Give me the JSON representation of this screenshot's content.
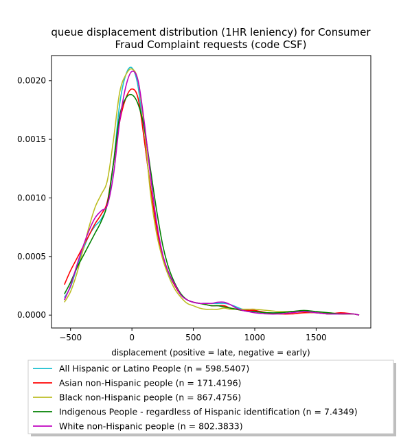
{
  "chart_data": {
    "type": "line",
    "title_lines": [
      "queue displacement distribution (1HR leniency) for Consumer",
      "Fraud Complaint  requests (code CSF)"
    ],
    "xlabel": "displacement (positive = late, negative = early)",
    "ylabel": "",
    "xlim": [
      -655,
      1945
    ],
    "ylim": [
      -0.00011,
      0.002215
    ],
    "x_ticks": [
      -500,
      0,
      500,
      1000,
      1500
    ],
    "x_tick_labels": [
      "−500",
      "0",
      "500",
      "1000",
      "1500"
    ],
    "y_ticks": [
      0.0,
      0.0005,
      0.001,
      0.0015,
      0.002
    ],
    "y_tick_labels": [
      "0.0000",
      "0.0005",
      "0.0010",
      "0.0015",
      "0.0020"
    ],
    "grid": false,
    "legend_position": "below",
    "series": [
      {
        "name": "All Hispanic or Latino People (n = 598.5407)",
        "color": "#17becf",
        "x": [
          -550,
          -500,
          -450,
          -400,
          -350,
          -300,
          -250,
          -200,
          -150,
          -100,
          -50,
          0,
          50,
          100,
          150,
          200,
          250,
          300,
          350,
          400,
          450,
          500,
          550,
          600,
          650,
          700,
          750,
          800,
          850,
          900,
          950,
          1000,
          1100,
          1200,
          1300,
          1400,
          1500,
          1600,
          1700,
          1800,
          1850
        ],
        "y": [
          0.00015,
          0.00024,
          0.0004,
          0.00055,
          0.00068,
          0.00076,
          0.00082,
          0.00095,
          0.0013,
          0.0018,
          0.00205,
          0.00211,
          0.00195,
          0.0015,
          0.0011,
          0.00075,
          0.0005,
          0.00035,
          0.00025,
          0.00017,
          0.00013,
          0.00011,
          0.0001,
          0.0001,
          0.0001,
          0.0001,
          0.0001,
          9e-05,
          7e-05,
          5e-05,
          4e-05,
          3e-05,
          2e-05,
          2e-05,
          3e-05,
          3e-05,
          2e-05,
          1e-05,
          1e-05,
          1e-05,
          0.0
        ]
      },
      {
        "name": "Asian non-Hispanic people (n = 171.4196)",
        "color": "#ff0000",
        "x": [
          -550,
          -500,
          -450,
          -400,
          -350,
          -300,
          -250,
          -200,
          -150,
          -100,
          -50,
          0,
          50,
          100,
          150,
          200,
          250,
          300,
          350,
          400,
          450,
          500,
          550,
          600,
          650,
          700,
          750,
          800,
          850,
          900,
          950,
          1000,
          1100,
          1200,
          1300,
          1400,
          1500,
          1600,
          1700,
          1800,
          1850
        ],
        "y": [
          0.00026,
          0.00038,
          0.00048,
          0.00058,
          0.00068,
          0.00078,
          0.00086,
          0.00097,
          0.0013,
          0.00165,
          0.00185,
          0.00193,
          0.00185,
          0.0015,
          0.0011,
          0.00075,
          0.0005,
          0.00036,
          0.00025,
          0.00017,
          0.00013,
          0.00011,
          0.0001,
          9e-05,
          8e-05,
          8e-05,
          8e-05,
          6e-05,
          5e-05,
          4e-05,
          4e-05,
          4e-05,
          2e-05,
          1e-05,
          1e-05,
          2e-05,
          2e-05,
          1e-05,
          2e-05,
          1e-05,
          0.0
        ]
      },
      {
        "name": "Black non-Hispanic people (n = 867.4756)",
        "color": "#bcbd22",
        "x": [
          -550,
          -500,
          -450,
          -400,
          -350,
          -300,
          -250,
          -200,
          -150,
          -100,
          -50,
          0,
          50,
          100,
          150,
          200,
          250,
          300,
          350,
          400,
          450,
          500,
          550,
          600,
          650,
          700,
          750,
          800,
          850,
          900,
          950,
          1000,
          1100,
          1200,
          1300,
          1400,
          1500,
          1600,
          1700,
          1800,
          1850
        ],
        "y": [
          0.00011,
          0.0002,
          0.00035,
          0.00055,
          0.00075,
          0.00092,
          0.00103,
          0.00115,
          0.0015,
          0.0019,
          0.00205,
          0.0021,
          0.002,
          0.0016,
          0.00105,
          0.0007,
          0.00048,
          0.00033,
          0.00022,
          0.00015,
          0.0001,
          8e-05,
          6e-05,
          5e-05,
          5e-05,
          5e-05,
          6e-05,
          5e-05,
          5e-05,
          5e-05,
          5e-05,
          5e-05,
          4e-05,
          3e-05,
          3e-05,
          3e-05,
          2e-05,
          2e-05,
          1e-05,
          1e-05,
          0.0
        ]
      },
      {
        "name": "Indigenous People - regardless of Hispanic identification (n = 7.4349)",
        "color": "#008000",
        "x": [
          -550,
          -500,
          -450,
          -400,
          -350,
          -300,
          -250,
          -200,
          -150,
          -100,
          -50,
          0,
          50,
          100,
          150,
          200,
          250,
          300,
          350,
          400,
          450,
          500,
          550,
          600,
          650,
          700,
          750,
          800,
          850,
          900,
          950,
          1000,
          1100,
          1200,
          1300,
          1400,
          1500,
          1600,
          1700,
          1800,
          1850
        ],
        "y": [
          0.00018,
          0.00028,
          0.0004,
          0.0005,
          0.0006,
          0.0007,
          0.0008,
          0.00095,
          0.0013,
          0.0017,
          0.00185,
          0.00188,
          0.0018,
          0.0016,
          0.00125,
          0.0009,
          0.0006,
          0.0004,
          0.00027,
          0.00018,
          0.00013,
          0.00011,
          0.0001,
          9e-05,
          8e-05,
          8e-05,
          7e-05,
          6e-05,
          5e-05,
          4e-05,
          3e-05,
          3e-05,
          2e-05,
          2e-05,
          3e-05,
          4e-05,
          3e-05,
          2e-05,
          1e-05,
          1e-05,
          0.0
        ]
      },
      {
        "name": "White non-Hispanic people (n = 802.3833)",
        "color": "#bf00bf",
        "x": [
          -550,
          -500,
          -450,
          -400,
          -350,
          -300,
          -250,
          -200,
          -150,
          -100,
          -50,
          0,
          50,
          100,
          150,
          200,
          250,
          300,
          350,
          400,
          450,
          500,
          550,
          600,
          650,
          700,
          750,
          800,
          850,
          900,
          950,
          1000,
          1100,
          1200,
          1300,
          1400,
          1500,
          1600,
          1700,
          1800,
          1850
        ],
        "y": [
          0.00013,
          0.00025,
          0.00042,
          0.00058,
          0.00072,
          0.00083,
          0.00089,
          0.00094,
          0.0012,
          0.00165,
          0.00195,
          0.00208,
          0.002,
          0.00165,
          0.0012,
          0.0008,
          0.00052,
          0.00036,
          0.00026,
          0.00017,
          0.00013,
          0.00011,
          0.0001,
          0.0001,
          0.0001,
          0.00011,
          0.00011,
          9e-05,
          6e-05,
          4e-05,
          3e-05,
          2e-05,
          1e-05,
          1e-05,
          2e-05,
          3e-05,
          2e-05,
          1e-05,
          1e-05,
          1e-05,
          0.0
        ]
      }
    ]
  }
}
